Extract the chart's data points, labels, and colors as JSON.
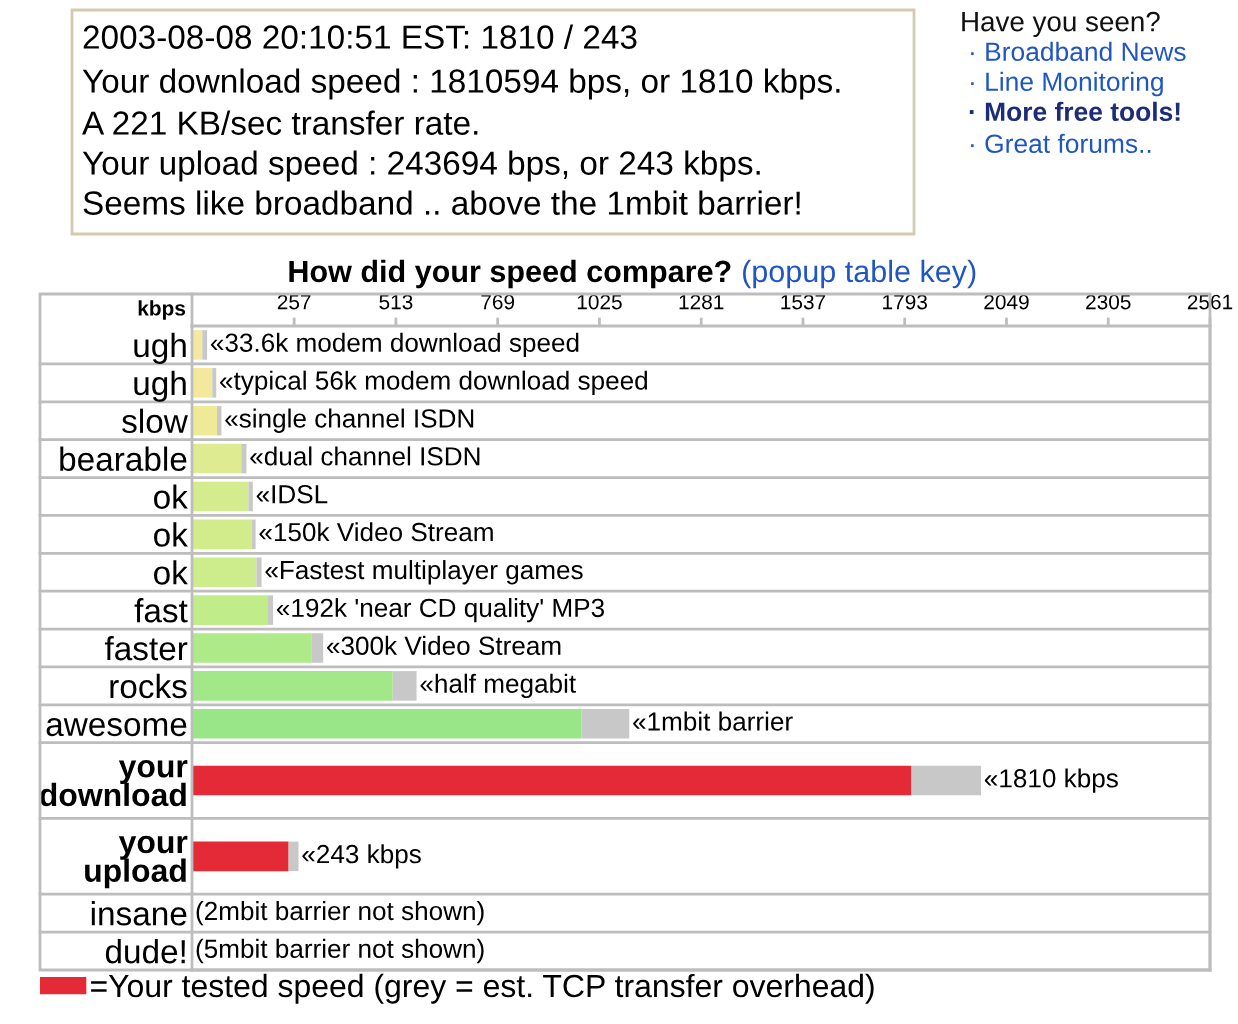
{
  "chart_data": {
    "type": "bar",
    "orientation": "horizontal",
    "stacked": true,
    "title": "How did your speed compare?",
    "subtitle": "(popup table key)",
    "xlabel": "kbps",
    "categories": [
      "ugh",
      "ugh",
      "slow",
      "bearable",
      "ok",
      "ok",
      "ok",
      "fast",
      "faster",
      "rocks",
      "awesome",
      "your download",
      "your upload",
      "insane",
      "dude!"
    ],
    "series": [
      {
        "colors": [
          "#f5e8a0",
          "#f3e89c",
          "#eeea98",
          "#dfeb90",
          "#d5ec8e",
          "#d2ec8c",
          "#cdec8c",
          "#c0ec8a",
          "#aeea88",
          "#a2e888",
          "#98e688",
          null,
          null,
          null,
          null
        ],
        "values": [
          26,
          51,
          63,
          124,
          142,
          150,
          162,
          191,
          300,
          505,
          980,
          null,
          null,
          null,
          null
        ]
      },
      {
        "name": "=Your tested speed (grey = est. TCP transfer overhead)",
        "color": "#e42a36",
        "values": [
          null,
          null,
          null,
          null,
          null,
          null,
          null,
          null,
          null,
          null,
          null,
          1810,
          243,
          null,
          null
        ]
      },
      {
        "color": "#c8c8c8",
        "values": [
          12,
          10,
          11,
          13,
          11,
          10,
          13,
          13,
          30,
          60,
          120,
          175,
          25,
          null,
          null
        ]
      }
    ],
    "xlim": [
      0,
      2561
    ],
    "xticks": [
      257,
      513,
      769,
      1025,
      1281,
      1537,
      1793,
      2049,
      2305,
      2561
    ],
    "grid": "y",
    "legend": "bottom left",
    "annotations": [
      "2003-08-08 20:10:51 EST: 1810 / 243",
      "Your download speed : 1810594 bps, or 1810 kbps.",
      "A 221 KB/sec transfer rate.",
      "Your upload speed : 243694 bps, or 243 kbps.",
      "Seems like broadband .. above the 1mbit barrier!",
      "Have you seen?",
      "· Broadband News",
      "· Line Monitoring",
      "· More free tools!",
      "· Great forums..",
      {
        "text": "«33.6k modem download speed",
        "x": 38,
        "y": "ugh"
      },
      {
        "text": "«typical 56k modem download speed",
        "x": 61,
        "y": "ugh"
      },
      {
        "text": "«single channel ISDN",
        "x": 74,
        "y": "slow"
      },
      {
        "text": "«dual channel ISDN",
        "x": 137,
        "y": "bearable"
      },
      {
        "text": "«IDSL",
        "x": 153,
        "y": "ok"
      },
      {
        "text": "«150k Video Stream",
        "x": 160,
        "y": "ok"
      },
      {
        "text": "«Fastest multiplayer games",
        "x": 175,
        "y": "ok"
      },
      {
        "text": "«192k 'near CD quality' MP3",
        "x": 204,
        "y": "fast"
      },
      {
        "text": "«300k Video Stream",
        "x": 330,
        "y": "faster"
      },
      {
        "text": "«half megabit",
        "x": 565,
        "y": "rocks"
      },
      {
        "text": "«1mbit barrier",
        "x": 1100,
        "y": "awesome"
      },
      {
        "text": "«1810 kbps",
        "x": 1985,
        "y": "your download"
      },
      {
        "text": "«243 kbps",
        "x": 268,
        "y": "your upload"
      },
      "(2mbit barrier not shown)",
      "(5mbit barrier not shown)"
    ]
  }
}
